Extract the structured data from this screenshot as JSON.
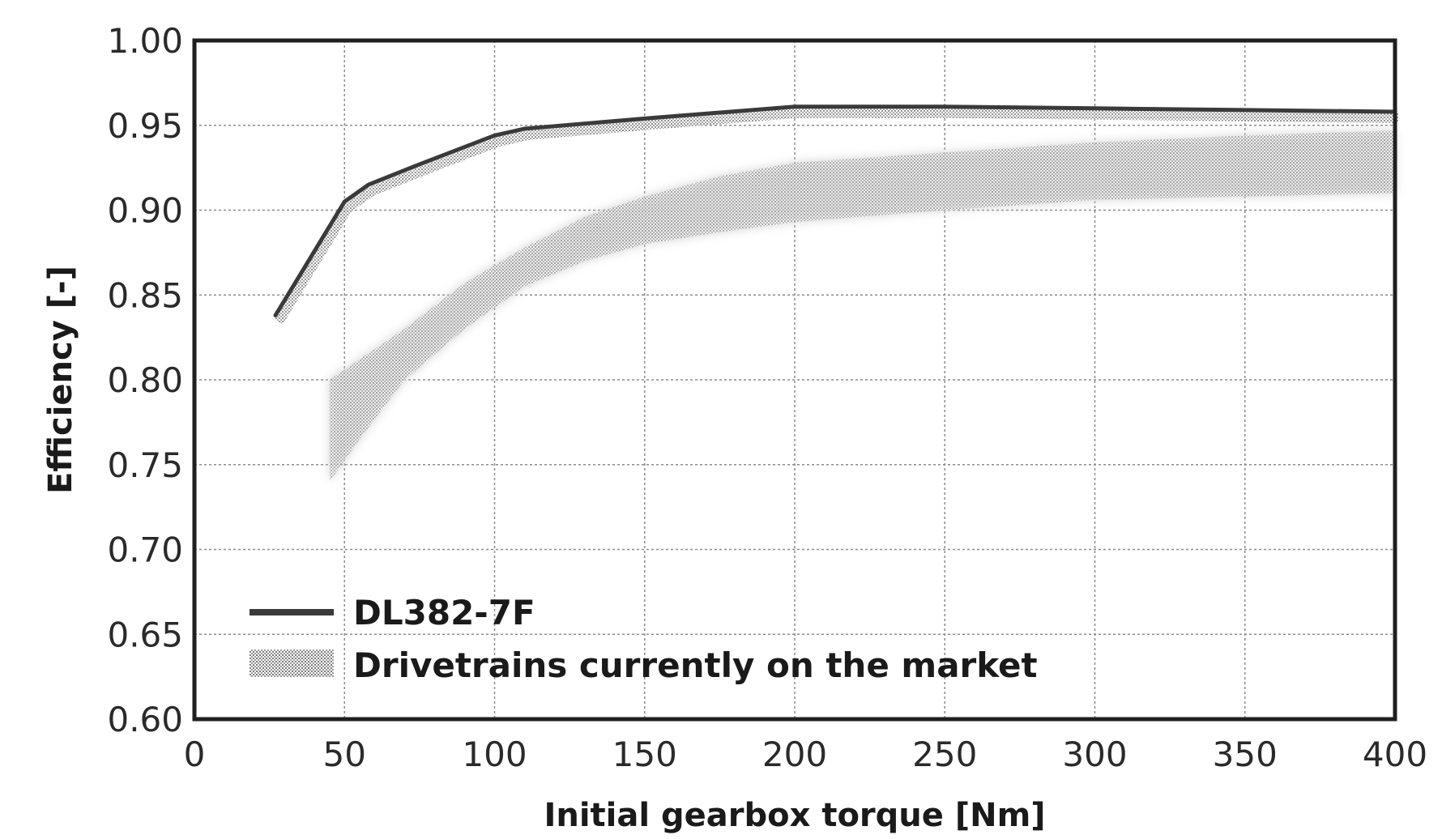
{
  "chart_data": {
    "type": "line",
    "title": "",
    "xlabel": "Initial gearbox torque [Nm]",
    "ylabel": "Efficiency [-]",
    "xlim": [
      0,
      400
    ],
    "ylim": [
      0.6,
      1.0
    ],
    "x_ticks": [
      "0",
      "50",
      "100",
      "150",
      "200",
      "250",
      "300",
      "350",
      "400"
    ],
    "y_ticks": [
      "0.60",
      "0.65",
      "0.70",
      "0.75",
      "0.80",
      "0.85",
      "0.90",
      "0.95",
      "1.00"
    ],
    "grid": true,
    "legend_position": "bottom-left",
    "series": [
      {
        "name": "DL382-7F",
        "style": "line",
        "color": "#3a3a3a",
        "x": [
          27,
          50,
          58,
          75,
          100,
          110,
          150,
          200,
          250,
          300,
          350,
          400
        ],
        "y": [
          0.838,
          0.905,
          0.915,
          0.927,
          0.944,
          0.948,
          0.954,
          0.961,
          0.961,
          0.96,
          0.959,
          0.958
        ]
      },
      {
        "name": "Drivetrains currently on the market",
        "style": "band",
        "color": "#9a9a9a",
        "x": [
          45,
          55,
          70,
          90,
          110,
          130,
          150,
          175,
          200,
          250,
          300,
          350,
          400
        ],
        "lower": [
          0.74,
          0.765,
          0.8,
          0.83,
          0.855,
          0.87,
          0.88,
          0.887,
          0.893,
          0.9,
          0.906,
          0.908,
          0.91
        ],
        "upper": [
          0.8,
          0.812,
          0.83,
          0.857,
          0.878,
          0.896,
          0.908,
          0.92,
          0.928,
          0.934,
          0.94,
          0.944,
          0.947
        ]
      }
    ]
  }
}
